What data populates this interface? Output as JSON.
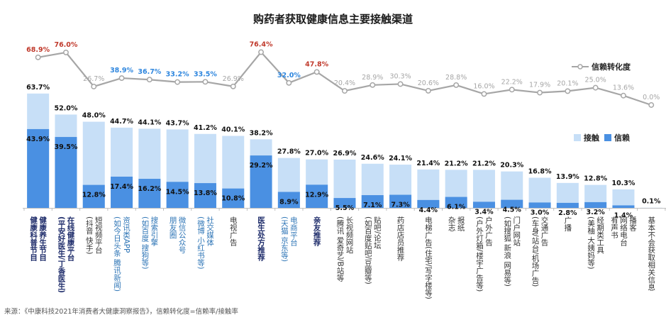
{
  "title": "购药者获取健康信息主要接触渠道",
  "source": "来源：《中康科技2021年消费者大健康洞察报告》，信赖转化度=信赖率/接触率",
  "colors": {
    "contact": "#c7dff7",
    "trust": "#4a90e2",
    "line": "#a6a6a6",
    "red": "#c0392b",
    "blue": "#2e86de",
    "grey": "#a6a6a6",
    "navy": "#1f2d6b",
    "label_blue": "#2e75b6",
    "label_dark": "#333333"
  },
  "chart_data": {
    "type": "bar",
    "legend": [
      "接触",
      "信赖"
    ],
    "line_legend": "信赖转化度",
    "categories": [
      [
        "健康养生节目",
        "健康科普节目"
      ],
      [
        "在线健康平台",
        "(平安好医生/丁香医生)"
      ],
      [
        "短视频平台",
        "(抖音 快手)"
      ],
      [
        "资讯类APP",
        "(如今日头条 腾讯新闻)"
      ],
      [
        "搜索引擎",
        "(如百度 搜狗等)"
      ],
      [
        "微信公众号",
        "朋友圈"
      ],
      [
        "社交媒体",
        "(微博 小红书等)"
      ],
      [
        "电视广告"
      ],
      [
        "医生处方推荐"
      ],
      [
        "电商平台",
        "(天猫 京东等)"
      ],
      [
        "亲友推荐"
      ],
      [
        "长视频网站",
        "(腾讯 爱奇艺/B站等"
      ],
      [
        "贴吧/论坛",
        "(如百度贴吧/豆瓣等)"
      ],
      [
        "药店店员推荐"
      ],
      [
        "电梯广告(住宅/写字楼等)"
      ],
      [
        "报纸",
        "杂志"
      ],
      [
        "户外广告",
        "(户外灯箱/楼宇广告等)"
      ],
      [
        "门户网站",
        "(如搜狐 新浪 网易等)"
      ],
      [
        "交通广告",
        "(车身/站台/机场广告)"
      ],
      [
        "广播"
      ],
      [
        "经期类工具",
        "(美柚 大姨妈等)"
      ],
      [
        "播客",
        "网络电台",
        "有声书"
      ],
      [
        "基本不会获取相关信息"
      ]
    ],
    "category_colors": [
      "navy",
      "navy",
      "dark",
      "blue",
      "blue",
      "blue",
      "blue",
      "dark",
      "navy",
      "blue",
      "navy",
      "dark",
      "dark",
      "dark",
      "dark",
      "dark",
      "dark",
      "dark",
      "dark",
      "dark",
      "dark",
      "dark",
      "dark"
    ],
    "contact": [
      63.7,
      52.0,
      48.0,
      44.7,
      44.1,
      43.7,
      41.2,
      40.1,
      38.2,
      27.8,
      27.0,
      26.9,
      24.6,
      24.1,
      21.4,
      21.2,
      21.2,
      20.3,
      16.8,
      13.9,
      12.8,
      10.3,
      0.1
    ],
    "contact_labels": [
      "63.7%",
      "52.0%",
      "48.0%",
      "44.7%",
      "44.1%",
      "43.7%",
      "41.2%",
      "40.1%",
      "38.2%",
      "27.8%",
      "27.0%",
      "26.9%",
      "24.6%",
      "24.1%",
      "21.4%",
      "21.2%",
      "21.2%",
      "20.3%",
      "16.8%",
      "13.9%",
      "12.8%",
      "10.3%",
      "0.1%"
    ],
    "trust": [
      43.9,
      39.5,
      12.8,
      17.4,
      16.2,
      14.5,
      13.8,
      10.8,
      29.2,
      8.9,
      12.9,
      5.5,
      7.1,
      7.3,
      4.4,
      6.1,
      3.4,
      4.5,
      3.0,
      2.8,
      3.2,
      1.4,
      null
    ],
    "trust_labels": [
      "43.9%",
      "39.5%",
      "12.8%",
      "17.4%",
      "16.2%",
      "14.5%",
      "13.8%",
      "10.8%",
      "29.2%",
      "8.9%",
      "12.9%",
      "5.5%",
      "7.1%",
      "7.3%",
      "4.4%",
      "6.1%",
      "3.4%",
      "4.5%",
      "3.0%",
      "2.8%",
      "3.2%",
      "1.4%",
      ""
    ],
    "conversion": [
      68.9,
      76.0,
      26.7,
      38.9,
      36.7,
      33.2,
      33.5,
      26.9,
      76.4,
      32.0,
      47.8,
      20.4,
      28.9,
      30.3,
      20.6,
      28.8,
      16.0,
      22.2,
      17.9,
      20.1,
      25.0,
      13.6,
      0.0
    ],
    "conversion_labels": [
      "68.9%",
      "76.0%",
      "26.7%",
      "38.9%",
      "36.7%",
      "33.2%",
      "33.5%",
      "26.9%",
      "76.4%",
      "32.0%",
      "47.8%",
      "20.4%",
      "28.9%",
      "30.3%",
      "20.6%",
      "28.8%",
      "16.0%",
      "22.2%",
      "17.9%",
      "20.1%",
      "25.0%",
      "13.6%",
      "0.0%"
    ],
    "conversion_colors": [
      "red",
      "red",
      "grey",
      "blue",
      "blue",
      "blue",
      "blue",
      "grey",
      "red",
      "blue",
      "red",
      "grey",
      "grey",
      "grey",
      "grey",
      "grey",
      "grey",
      "grey",
      "grey",
      "grey",
      "grey",
      "grey",
      "grey"
    ],
    "ylim": [
      0,
      70
    ],
    "conversion_ylim": [
      0,
      80
    ]
  }
}
